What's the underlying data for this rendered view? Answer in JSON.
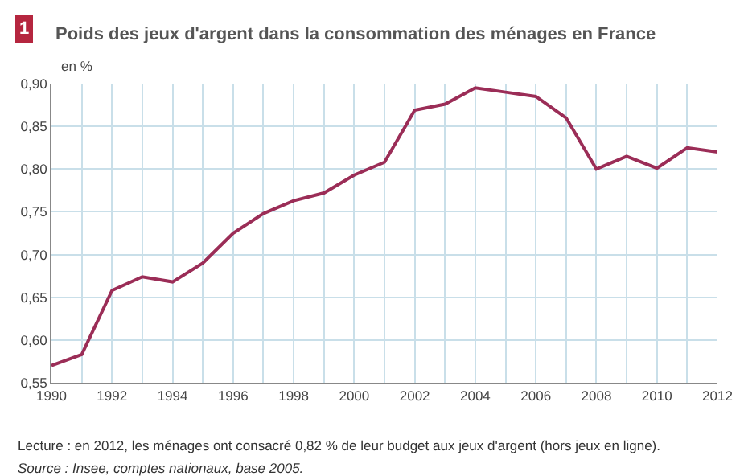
{
  "chart_data": {
    "type": "line",
    "title": "Poids des jeux d'argent dans la consommation des ménages en France",
    "ylabel": "en %",
    "annotations": [
      "1",
      "Lecture : en 2012, les ménages ont consacré 0,82 % de leur budget aux jeux d'argent (hors jeux en ligne).",
      "Source : Insee, comptes nationaux, base 2005."
    ],
    "x": [
      1990,
      1991,
      1992,
      1993,
      1994,
      1995,
      1996,
      1997,
      1998,
      1999,
      2000,
      2001,
      2002,
      2003,
      2004,
      2005,
      2006,
      2007,
      2008,
      2009,
      2010,
      2011,
      2012
    ],
    "series": [
      {
        "color": "#9b2d57",
        "values": [
          0.57,
          0.583,
          0.658,
          0.674,
          0.668,
          0.69,
          0.725,
          0.748,
          0.763,
          0.772,
          0.793,
          0.808,
          0.869,
          0.876,
          0.895,
          0.89,
          0.885,
          0.86,
          0.8,
          0.815,
          0.801,
          0.825,
          0.82
        ]
      }
    ],
    "xlim": [
      1990,
      2012
    ],
    "xticks": [
      1990,
      {
        "value": 1991,
        "label": null
      },
      1992,
      {
        "value": 1993,
        "label": null
      },
      1994,
      {
        "value": 1995,
        "label": null
      },
      1996,
      {
        "value": 1997,
        "label": null
      },
      1998,
      {
        "value": 1999,
        "label": null
      },
      2000,
      {
        "value": 2001,
        "label": null
      },
      2002,
      {
        "value": 2003,
        "label": null
      },
      2004,
      {
        "value": 2005,
        "label": null
      },
      2006,
      {
        "value": 2007,
        "label": null
      },
      2008,
      {
        "value": 2009,
        "label": null
      },
      2010,
      {
        "value": 2011,
        "label": null
      },
      2012
    ],
    "ylim": [
      0.55,
      0.9
    ],
    "yticks": [
      {
        "value": 0.55,
        "label": "0,55"
      },
      {
        "value": 0.6,
        "label": "0,60"
      },
      {
        "value": 0.65,
        "label": "0,65"
      },
      {
        "value": 0.7,
        "label": "0,70"
      },
      {
        "value": 0.75,
        "label": "0,75"
      },
      {
        "value": 0.8,
        "label": "0,80"
      },
      {
        "value": 0.85,
        "label": "0,85"
      },
      {
        "value": 0.9,
        "label": "0,90"
      }
    ],
    "grid": true,
    "marker": "none",
    "line_style": "solid"
  }
}
